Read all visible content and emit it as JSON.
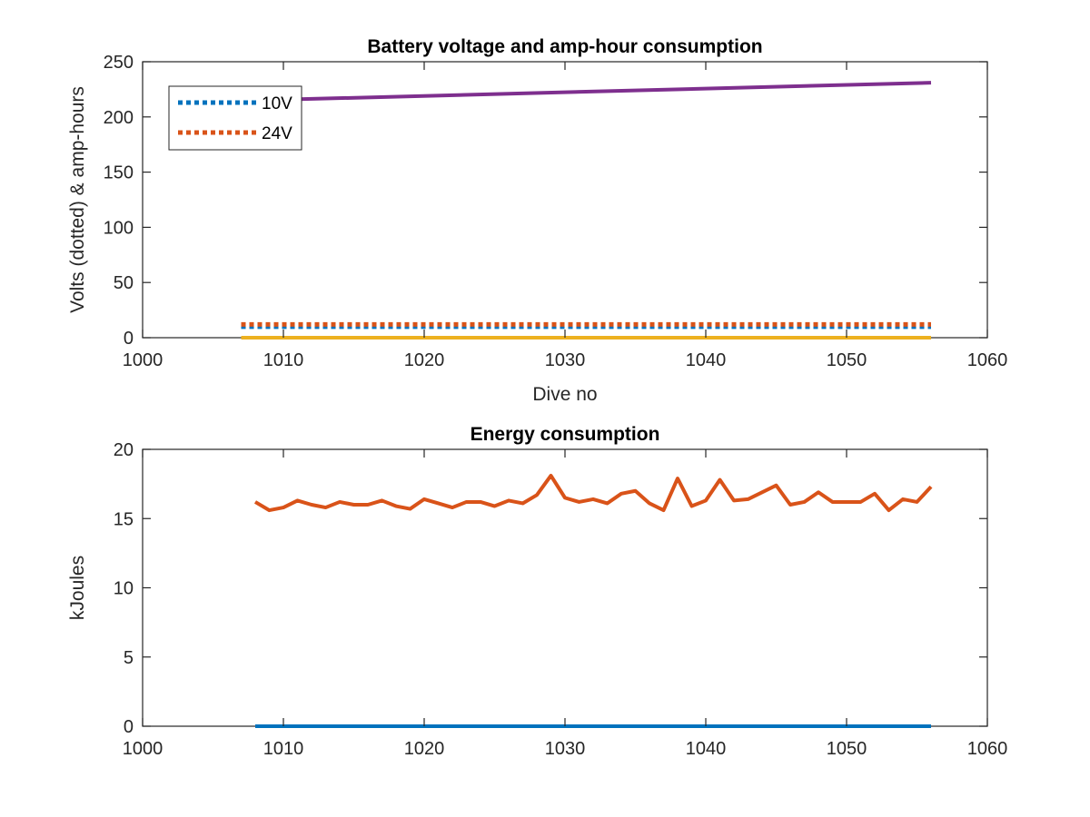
{
  "chart_data": [
    {
      "type": "line",
      "title": "Battery voltage and amp-hour consumption",
      "xlabel": "Dive no",
      "ylabel": "Volts (dotted) & amp-hours",
      "xlim": [
        1000,
        1060
      ],
      "ylim": [
        0,
        250
      ],
      "xticks": [
        1000,
        1010,
        1020,
        1030,
        1040,
        1050,
        1060
      ],
      "yticks": [
        0,
        50,
        100,
        150,
        200,
        250
      ],
      "legend_position": "top-left",
      "grid": false,
      "series": [
        {
          "name": "10V",
          "style": "dotted",
          "color": "#0072BD",
          "x": [
            1007,
            1056
          ],
          "y": [
            10,
            10
          ]
        },
        {
          "name": "24V",
          "style": "dotted",
          "color": "#D95319",
          "x": [
            1007,
            1056
          ],
          "y": [
            12,
            12
          ]
        },
        {
          "style": "solid",
          "color": "#EDB120",
          "x": [
            1007,
            1056
          ],
          "y": [
            0,
            0
          ]
        },
        {
          "style": "solid",
          "color": "#7E2F8E",
          "x": [
            1008,
            1056
          ],
          "y": [
            215,
            231
          ]
        }
      ]
    },
    {
      "type": "line",
      "title": "Energy consumption",
      "xlabel": "",
      "ylabel": "kJoules",
      "xlim": [
        1000,
        1060
      ],
      "ylim": [
        0,
        20
      ],
      "xticks": [
        1000,
        1010,
        1020,
        1030,
        1040,
        1050,
        1060
      ],
      "yticks": [
        0,
        5,
        10,
        15,
        20
      ],
      "grid": false,
      "series": [
        {
          "style": "solid",
          "color": "#0072BD",
          "x": [
            1008,
            1056
          ],
          "y": [
            0,
            0
          ]
        },
        {
          "style": "solid",
          "color": "#D95319",
          "x": [
            1008,
            1009,
            1010,
            1011,
            1012,
            1013,
            1014,
            1015,
            1016,
            1017,
            1018,
            1019,
            1020,
            1021,
            1022,
            1023,
            1024,
            1025,
            1026,
            1027,
            1028,
            1029,
            1030,
            1031,
            1032,
            1033,
            1034,
            1035,
            1036,
            1037,
            1038,
            1039,
            1040,
            1041,
            1042,
            1043,
            1044,
            1045,
            1046,
            1047,
            1048,
            1049,
            1050,
            1051,
            1052,
            1053,
            1054,
            1055,
            1056
          ],
          "y": [
            16.2,
            15.6,
            15.8,
            16.3,
            16.0,
            15.8,
            16.2,
            16.0,
            16.0,
            16.3,
            15.9,
            15.7,
            16.4,
            16.1,
            15.8,
            16.2,
            16.2,
            15.9,
            16.3,
            16.1,
            16.7,
            18.1,
            16.5,
            16.2,
            16.4,
            16.1,
            16.8,
            17.0,
            16.1,
            15.6,
            17.9,
            15.9,
            16.3,
            17.8,
            16.3,
            16.4,
            16.9,
            17.4,
            16.0,
            16.2,
            16.9,
            16.2,
            16.2,
            16.2,
            16.8,
            15.6,
            16.4,
            16.2,
            17.3
          ]
        }
      ]
    }
  ]
}
